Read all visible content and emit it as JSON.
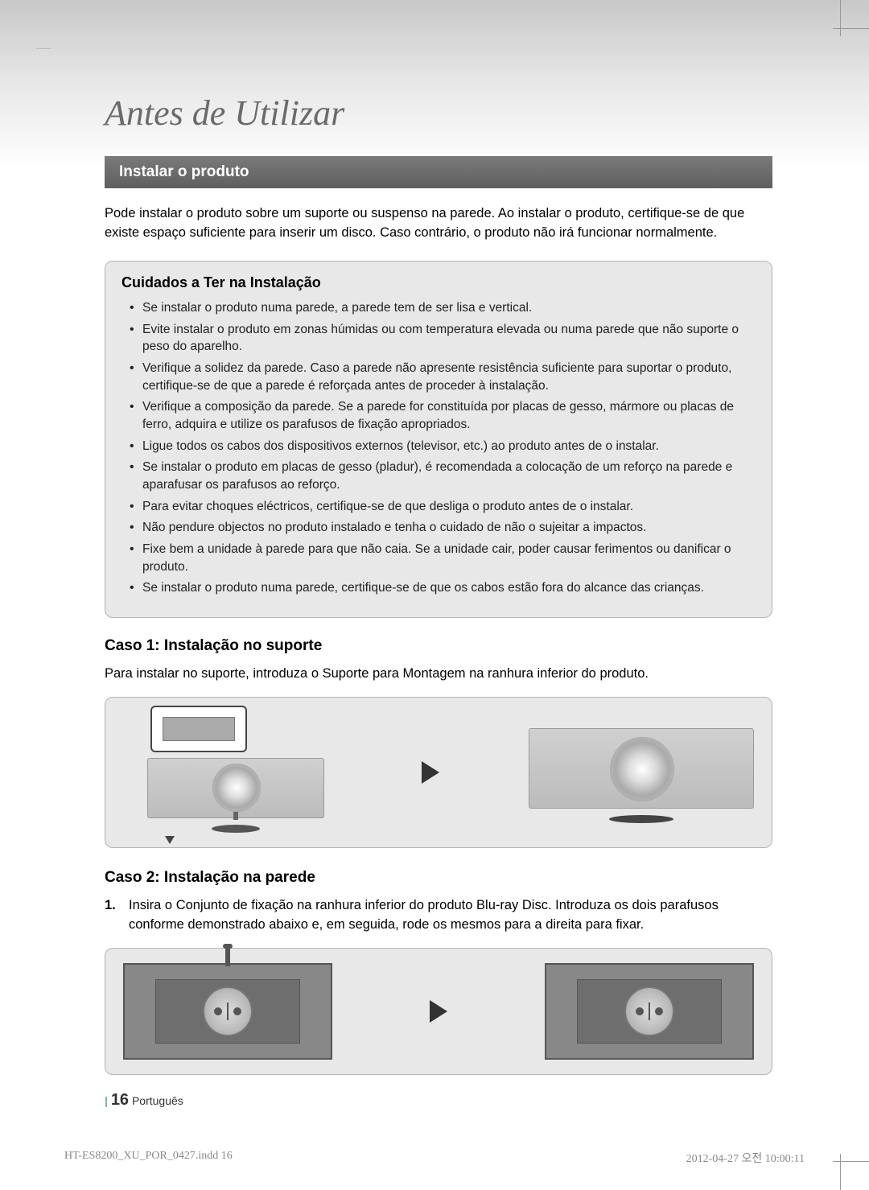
{
  "page": {
    "title": "Antes de Utilizar",
    "section_heading": "Instalar o produto",
    "intro": "Pode instalar o produto sobre um suporte ou suspenso na parede. Ao instalar o produto, certifique-se de que existe espaço suficiente para inserir um disco. Caso contrário, o produto não irá funcionar normalmente.",
    "care_title": "Cuidados a Ter na Instalação",
    "care_items": [
      "Se instalar o produto numa parede, a parede tem de ser lisa e vertical.",
      "Evite instalar o produto em zonas húmidas ou com temperatura elevada ou numa parede que não suporte o peso do aparelho.",
      "Verifique a solidez da parede. Caso a parede não apresente resistência suficiente para suportar o produto, certifique-se de que a parede é reforçada antes de proceder à instalação.",
      "Verifique a composição da parede. Se a parede for constituída por placas de gesso, mármore ou placas de ferro, adquira e utilize os parafusos de fixação apropriados.",
      "Ligue todos os cabos dos dispositivos externos (televisor, etc.) ao produto antes de o instalar.",
      "Se instalar o produto em placas de gesso (pladur), é recomendada a colocação de um reforço na parede e aparafusar os parafusos ao reforço.",
      "Para evitar choques eléctricos, certifique-se de que desliga o produto antes de o instalar.",
      "Não pendure objectos no produto instalado e tenha o cuidado de não o sujeitar a impactos.",
      "Fixe bem a unidade à parede para que não caia. Se a unidade cair, poder causar ferimentos ou danificar o produto.",
      "Se instalar o produto numa parede, certifique-se de que os cabos estão fora do alcance das crianças."
    ],
    "case1_title": "Caso 1: Instalação no suporte",
    "case1_text": "Para instalar no suporte, introduza o Suporte para Montagem na ranhura inferior do produto.",
    "case2_title": "Caso 2: Instalação na parede",
    "case2_step_num": "1.",
    "case2_step_text": "Insira o Conjunto de fixação na ranhura inferior do produto Blu-ray Disc. Introduza os dois parafusos conforme demonstrado abaixo e, em seguida, rode os mesmos para a direita para fixar.",
    "footer_bar": "|",
    "footer_page": "16",
    "footer_lang": "Português",
    "print_file": "HT-ES8200_XU_POR_0427.indd   16",
    "print_date": "2012-04-27   오전 10:00:11"
  },
  "colors": {
    "header_gradient_from": "#c8c8c8",
    "header_gradient_to": "#ffffff",
    "section_bar_bg": "#6a6a6a",
    "box_bg": "#e8e8e8",
    "box_border": "#b5b5b5",
    "title_color": "#6a6a6a",
    "arrow_color": "#333333"
  }
}
